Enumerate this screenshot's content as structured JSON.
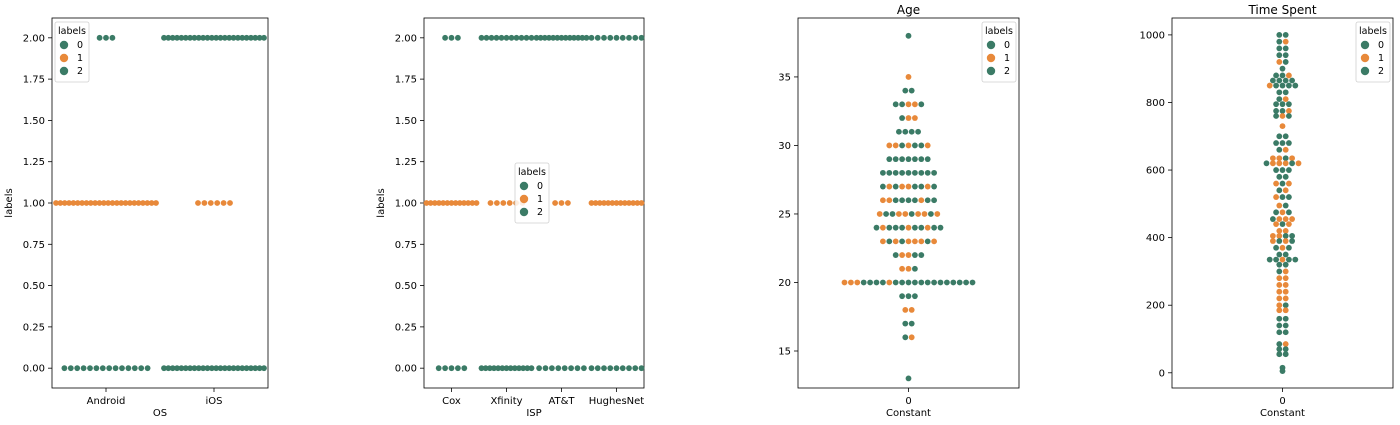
{
  "colors": {
    "label_0": "#3b7b66",
    "label_1": "#e8893a",
    "label_2": "#3b7b66",
    "axis": "#000000"
  },
  "chart_data": [
    {
      "type": "scatter",
      "subtype": "swarm",
      "title": "",
      "xlabel": "OS",
      "ylabel": "labels",
      "categories": [
        "Android",
        "iOS"
      ],
      "ylim": [
        -0.12,
        2.12
      ],
      "yticks": [
        "0.00",
        "0.25",
        "0.50",
        "0.75",
        "1.00",
        "1.25",
        "1.50",
        "1.75",
        "2.00"
      ],
      "ytick_values": [
        0,
        0.25,
        0.5,
        0.75,
        1.0,
        1.25,
        1.5,
        1.75,
        2.0
      ],
      "legend": {
        "title": "labels",
        "entries": [
          "0",
          "1",
          "2"
        ],
        "placement": "top-left"
      },
      "clusters": [
        {
          "category": "Android",
          "y": 2,
          "label": "0",
          "count": 3
        },
        {
          "category": "Android",
          "y": 1,
          "label": "1",
          "count": 24
        },
        {
          "category": "Android",
          "y": 0,
          "label": "2",
          "count": 14
        },
        {
          "category": "iOS",
          "y": 2,
          "label": "0",
          "count": 24
        },
        {
          "category": "iOS",
          "y": 1,
          "label": "1",
          "count": 6
        },
        {
          "category": "iOS",
          "y": 0,
          "label": "2",
          "count": 24
        }
      ]
    },
    {
      "type": "scatter",
      "subtype": "swarm",
      "title": "",
      "xlabel": "ISP",
      "ylabel": "labels",
      "categories": [
        "Cox",
        "Xfinity",
        "AT&T",
        "HughesNet"
      ],
      "ylim": [
        -0.12,
        2.12
      ],
      "yticks": [
        "0.00",
        "0.25",
        "0.50",
        "0.75",
        "1.00",
        "1.25",
        "1.50",
        "1.75",
        "2.00"
      ],
      "ytick_values": [
        0,
        0.25,
        0.5,
        0.75,
        1.0,
        1.25,
        1.5,
        1.75,
        2.0
      ],
      "legend": {
        "title": "labels",
        "entries": [
          "0",
          "1",
          "2"
        ],
        "placement": "center"
      },
      "clusters": [
        {
          "category": "Cox",
          "y": 2,
          "label": "0",
          "count": 3
        },
        {
          "category": "Cox",
          "y": 1,
          "label": "1",
          "count": 13
        },
        {
          "category": "Cox",
          "y": 0,
          "label": "2",
          "count": 5
        },
        {
          "category": "Xfinity",
          "y": 2,
          "label": "0",
          "count": 11
        },
        {
          "category": "Xfinity",
          "y": 1,
          "label": "1",
          "count": 6
        },
        {
          "category": "Xfinity",
          "y": 0,
          "label": "2",
          "count": 13
        },
        {
          "category": "AT&T",
          "y": 2,
          "label": "0",
          "count": 13
        },
        {
          "category": "AT&T",
          "y": 1,
          "label": "1",
          "count": 3
        },
        {
          "category": "AT&T",
          "y": 0,
          "label": "2",
          "count": 8
        },
        {
          "category": "HughesNet",
          "y": 2,
          "label": "0",
          "count": 9
        },
        {
          "category": "HughesNet",
          "y": 1,
          "label": "1",
          "count": 13
        },
        {
          "category": "HughesNet",
          "y": 0,
          "label": "2",
          "count": 9
        }
      ]
    },
    {
      "type": "scatter",
      "subtype": "swarm",
      "title": "Age",
      "xlabel": "Constant",
      "ylabel": "",
      "categories": [
        "0"
      ],
      "ylim": [
        12.3,
        39.3
      ],
      "yticks": [
        "15",
        "20",
        "25",
        "30",
        "35"
      ],
      "ytick_values": [
        15,
        20,
        25,
        30,
        35
      ],
      "legend": {
        "title": "labels",
        "entries": [
          "0",
          "1",
          "2"
        ],
        "placement": "top-right"
      },
      "rows": [
        {
          "y": 38,
          "labels": [
            "0"
          ]
        },
        {
          "y": 35,
          "labels": [
            "1"
          ]
        },
        {
          "y": 34,
          "labels": [
            "0",
            "0"
          ]
        },
        {
          "y": 33,
          "labels": [
            "0",
            "0",
            "1",
            "1",
            "0"
          ]
        },
        {
          "y": 32,
          "labels": [
            "0",
            "1",
            "1"
          ]
        },
        {
          "y": 31,
          "labels": [
            "0",
            "0",
            "0",
            "0"
          ]
        },
        {
          "y": 30,
          "labels": [
            "1",
            "1",
            "0",
            "1",
            "0",
            "0",
            "1"
          ]
        },
        {
          "y": 29,
          "labels": [
            "0",
            "0",
            "0",
            "0",
            "0",
            "0",
            "0"
          ]
        },
        {
          "y": 28,
          "labels": [
            "0",
            "0",
            "0",
            "0",
            "0",
            "0",
            "0",
            "0",
            "0"
          ]
        },
        {
          "y": 27,
          "labels": [
            "0",
            "1",
            "0",
            "1",
            "1",
            "0",
            "0",
            "1",
            "0"
          ]
        },
        {
          "y": 26,
          "labels": [
            "1",
            "1",
            "0",
            "0",
            "0",
            "0",
            "1",
            "0",
            "0"
          ]
        },
        {
          "y": 25,
          "labels": [
            "1",
            "0",
            "0",
            "1",
            "1",
            "0",
            "1",
            "1",
            "0",
            "1"
          ]
        },
        {
          "y": 24,
          "labels": [
            "0",
            "1",
            "0",
            "0",
            "0",
            "1",
            "0",
            "0",
            "1",
            "0",
            "0"
          ]
        },
        {
          "y": 23,
          "labels": [
            "1",
            "0",
            "1",
            "0",
            "1",
            "1",
            "1",
            "0",
            "1"
          ]
        },
        {
          "y": 22,
          "labels": [
            "0",
            "1",
            "1",
            "0",
            "0"
          ]
        },
        {
          "y": 21,
          "labels": [
            "1",
            "1",
            "0"
          ]
        },
        {
          "y": 20,
          "labels": [
            "1",
            "1",
            "1",
            "0",
            "0",
            "0",
            "0",
            "1",
            "0",
            "0",
            "0",
            "0",
            "0",
            "0",
            "0",
            "0",
            "0",
            "0",
            "0",
            "0",
            "0"
          ]
        },
        {
          "y": 19,
          "labels": [
            "0",
            "0",
            "0"
          ]
        },
        {
          "y": 18,
          "labels": [
            "1",
            "1"
          ]
        },
        {
          "y": 17,
          "labels": [
            "0",
            "0"
          ]
        },
        {
          "y": 16,
          "labels": [
            "0",
            "1"
          ]
        },
        {
          "y": 13,
          "labels": [
            "0"
          ]
        }
      ]
    },
    {
      "type": "scatter",
      "subtype": "swarm",
      "title": "Time Spent",
      "xlabel": "Constant",
      "ylabel": "",
      "categories": [
        "0"
      ],
      "ylim": [
        -45,
        1050
      ],
      "yticks": [
        "0",
        "200",
        "400",
        "600",
        "800",
        "1000"
      ],
      "ytick_values": [
        0,
        200,
        400,
        600,
        800,
        1000
      ],
      "legend": {
        "title": "labels",
        "entries": [
          "0",
          "1",
          "2"
        ],
        "placement": "top-right"
      },
      "rows": [
        {
          "y": 1000,
          "labels": [
            "0",
            "0"
          ]
        },
        {
          "y": 980,
          "labels": [
            "0",
            "1"
          ]
        },
        {
          "y": 960,
          "labels": [
            "0",
            "0"
          ]
        },
        {
          "y": 940,
          "labels": [
            "0",
            "0"
          ]
        },
        {
          "y": 920,
          "labels": [
            "1",
            "0"
          ]
        },
        {
          "y": 900,
          "labels": [
            "0"
          ]
        },
        {
          "y": 880,
          "labels": [
            "0",
            "0",
            "1"
          ]
        },
        {
          "y": 865,
          "labels": [
            "0",
            "0",
            "0",
            "0"
          ]
        },
        {
          "y": 850,
          "labels": [
            "1",
            "0",
            "0",
            "0",
            "0"
          ]
        },
        {
          "y": 830,
          "labels": [
            "0",
            "0"
          ]
        },
        {
          "y": 810,
          "labels": [
            "0",
            "1"
          ]
        },
        {
          "y": 795,
          "labels": [
            "0",
            "0",
            "0"
          ]
        },
        {
          "y": 775,
          "labels": [
            "0",
            "0",
            "1"
          ]
        },
        {
          "y": 760,
          "labels": [
            "0",
            "1",
            "0"
          ]
        },
        {
          "y": 730,
          "labels": [
            "1"
          ]
        },
        {
          "y": 700,
          "labels": [
            "0",
            "0"
          ]
        },
        {
          "y": 680,
          "labels": [
            "0",
            "0",
            "0"
          ]
        },
        {
          "y": 660,
          "labels": [
            "0",
            "1"
          ]
        },
        {
          "y": 635,
          "labels": [
            "1",
            "1",
            "0",
            "1"
          ]
        },
        {
          "y": 620,
          "labels": [
            "0",
            "1",
            "1",
            "1",
            "0",
            "1"
          ]
        },
        {
          "y": 600,
          "labels": [
            "0",
            "0",
            "0"
          ]
        },
        {
          "y": 580,
          "labels": [
            "0",
            "0"
          ]
        },
        {
          "y": 560,
          "labels": [
            "1",
            "0",
            "1"
          ]
        },
        {
          "y": 540,
          "labels": [
            "0",
            "1"
          ]
        },
        {
          "y": 520,
          "labels": [
            "1",
            "0",
            "0"
          ]
        },
        {
          "y": 495,
          "labels": [
            "1",
            "0"
          ]
        },
        {
          "y": 475,
          "labels": [
            "0",
            "1",
            "0"
          ]
        },
        {
          "y": 455,
          "labels": [
            "0",
            "1",
            "1",
            "1"
          ]
        },
        {
          "y": 440,
          "labels": [
            "1",
            "0",
            "1"
          ]
        },
        {
          "y": 420,
          "labels": [
            "1",
            "1"
          ]
        },
        {
          "y": 405,
          "labels": [
            "1",
            "1",
            "0",
            "0"
          ]
        },
        {
          "y": 390,
          "labels": [
            "1",
            "0",
            "1",
            "0"
          ]
        },
        {
          "y": 370,
          "labels": [
            "0",
            "1",
            "0"
          ]
        },
        {
          "y": 350,
          "labels": [
            "0",
            "0"
          ]
        },
        {
          "y": 335,
          "labels": [
            "0",
            "0",
            "1",
            "0",
            "0"
          ]
        },
        {
          "y": 320,
          "labels": [
            "0",
            "0"
          ]
        },
        {
          "y": 300,
          "labels": [
            "0",
            "1"
          ]
        },
        {
          "y": 280,
          "labels": [
            "1",
            "1"
          ]
        },
        {
          "y": 260,
          "labels": [
            "1",
            "1"
          ]
        },
        {
          "y": 240,
          "labels": [
            "1",
            "1"
          ]
        },
        {
          "y": 220,
          "labels": [
            "1",
            "1"
          ]
        },
        {
          "y": 200,
          "labels": [
            "1",
            "0"
          ]
        },
        {
          "y": 185,
          "labels": [
            "1",
            "1"
          ]
        },
        {
          "y": 160,
          "labels": [
            "0",
            "0"
          ]
        },
        {
          "y": 140,
          "labels": [
            "0",
            "0"
          ]
        },
        {
          "y": 120,
          "labels": [
            "0",
            "0"
          ]
        },
        {
          "y": 85,
          "labels": [
            "0",
            "1"
          ]
        },
        {
          "y": 70,
          "labels": [
            "0",
            "0"
          ]
        },
        {
          "y": 55,
          "labels": [
            "0",
            "0"
          ]
        },
        {
          "y": 15,
          "labels": [
            "0"
          ]
        },
        {
          "y": 5,
          "labels": [
            "0"
          ]
        }
      ]
    }
  ]
}
